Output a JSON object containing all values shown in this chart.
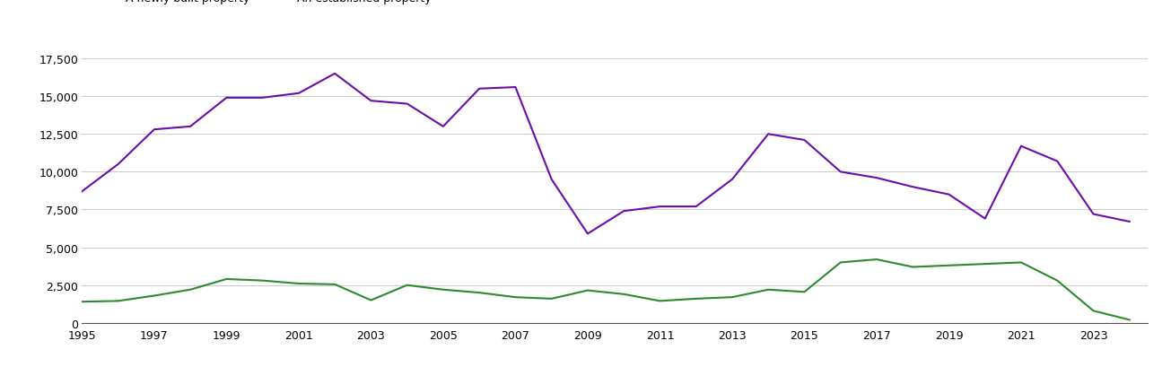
{
  "years": [
    1995,
    1996,
    1997,
    1998,
    1999,
    2000,
    2001,
    2002,
    2003,
    2004,
    2005,
    2006,
    2007,
    2008,
    2009,
    2010,
    2011,
    2012,
    2013,
    2014,
    2015,
    2016,
    2017,
    2018,
    2019,
    2020,
    2021,
    2022,
    2023,
    2024
  ],
  "new_build": [
    1400,
    1450,
    1800,
    2200,
    2900,
    2800,
    2600,
    2550,
    1500,
    2500,
    2200,
    2000,
    1700,
    1600,
    2150,
    1900,
    1450,
    1600,
    1700,
    2200,
    2050,
    4000,
    4200,
    3700,
    3800,
    3900,
    4000,
    2800,
    800,
    200
  ],
  "established": [
    8700,
    10500,
    12800,
    13000,
    14900,
    14900,
    15200,
    16500,
    14700,
    14500,
    13000,
    15500,
    15600,
    9500,
    5900,
    7400,
    7700,
    7700,
    9500,
    12500,
    12100,
    10000,
    9600,
    9000,
    8500,
    6900,
    11700,
    10700,
    7200,
    6700
  ],
  "new_build_color": "#2d8a2d",
  "established_color": "#6a0daa",
  "ylim": [
    0,
    18500
  ],
  "yticks": [
    0,
    2500,
    5000,
    7500,
    10000,
    12500,
    15000,
    17500
  ],
  "xtick_years": [
    1995,
    1997,
    1999,
    2001,
    2003,
    2005,
    2007,
    2009,
    2011,
    2013,
    2015,
    2017,
    2019,
    2021,
    2023
  ],
  "xlim_left": 1995,
  "xlim_right": 2024.5,
  "background_color": "#ffffff",
  "grid_color": "#cccccc",
  "linewidth": 1.5,
  "tick_fontsize": 9,
  "legend_fontsize": 9
}
